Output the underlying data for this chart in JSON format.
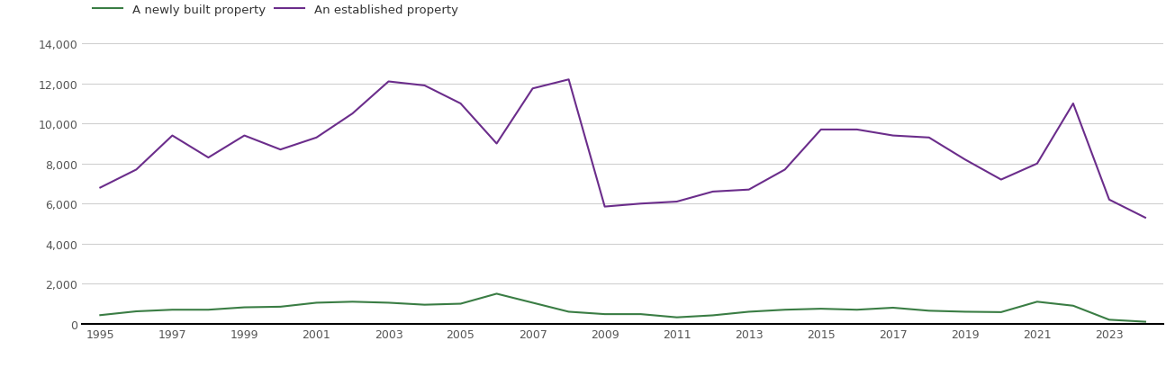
{
  "years": [
    1995,
    1996,
    1997,
    1998,
    1999,
    2000,
    2001,
    2002,
    2003,
    2004,
    2005,
    2006,
    2007,
    2008,
    2009,
    2010,
    2011,
    2012,
    2013,
    2014,
    2015,
    2016,
    2017,
    2018,
    2019,
    2020,
    2021,
    2022,
    2023,
    2024
  ],
  "new_homes": [
    430,
    620,
    700,
    700,
    820,
    850,
    1050,
    1100,
    1050,
    950,
    1000,
    1500,
    1050,
    600,
    480,
    480,
    320,
    420,
    600,
    700,
    750,
    700,
    800,
    650,
    600,
    580,
    1100,
    900,
    200,
    100
  ],
  "established_homes": [
    6800,
    7700,
    9400,
    8300,
    9400,
    8700,
    9300,
    10500,
    12100,
    11900,
    11000,
    9000,
    11750,
    12200,
    5850,
    6000,
    6100,
    6600,
    6700,
    7700,
    9700,
    9700,
    9400,
    9300,
    8200,
    7200,
    8000,
    11000,
    6200,
    5300
  ],
  "new_color": "#3a7d44",
  "established_color": "#6b2d8b",
  "legend_labels": [
    "A newly built property",
    "An established property"
  ],
  "xlim": [
    1994.5,
    2024.5
  ],
  "ylim": [
    0,
    14000
  ],
  "yticks": [
    0,
    2000,
    4000,
    6000,
    8000,
    10000,
    12000,
    14000
  ],
  "xticks": [
    1995,
    1997,
    1999,
    2001,
    2003,
    2005,
    2007,
    2009,
    2011,
    2013,
    2015,
    2017,
    2019,
    2021,
    2023
  ],
  "background_color": "#ffffff",
  "grid_color": "#d0d0d0"
}
